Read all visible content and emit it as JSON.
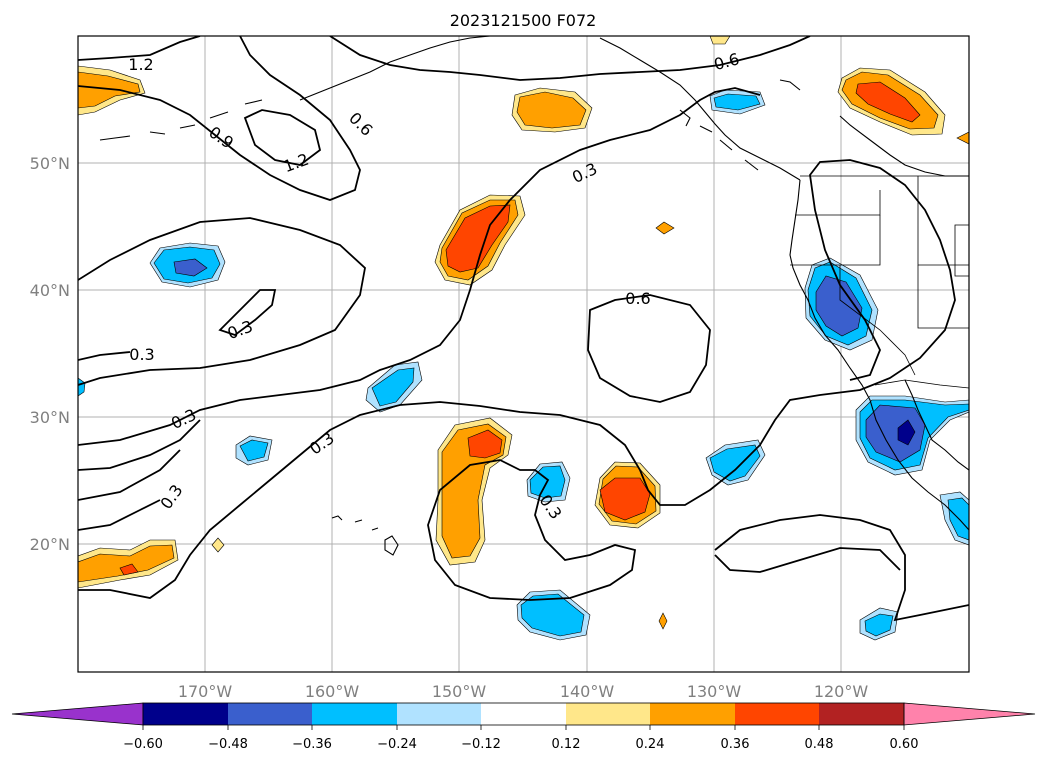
{
  "title": "2023121500 F072",
  "map": {
    "lat_labels": [
      "50°N",
      "40°N",
      "30°N",
      "20°N"
    ],
    "lon_labels": [
      "170°W",
      "160°W",
      "150°W",
      "140°W",
      "130°W",
      "120°W"
    ],
    "contour_labels": [
      "1.2",
      "0.9",
      "1.2",
      "0.6",
      "0.6",
      "0.3",
      "0.6",
      "0.3",
      "0.3",
      "0.3",
      "0.3",
      "0.3",
      "0.3"
    ],
    "colors": {
      "land_outline": "#000000",
      "grid": "#b0b0b0",
      "pos_012_024": "#ffe78a",
      "pos_024_036": "#ffa000",
      "pos_036_048": "#ff4500",
      "neg_012_024": "#b0e2ff",
      "neg_024_036": "#00bfff",
      "neg_036_048": "#3a5fcd",
      "neg_048_060": "#00008b"
    }
  },
  "colorbar": {
    "ticks": [
      "−0.60",
      "−0.48",
      "−0.36",
      "−0.24",
      "−0.12",
      "0.12",
      "0.24",
      "0.36",
      "0.48",
      "0.60"
    ],
    "colors": [
      "#9932cc",
      "#00008b",
      "#3a5fcd",
      "#00bfff",
      "#b0e2ff",
      "#ffffff",
      "#ffe78a",
      "#ffa000",
      "#ff4500",
      "#b22222",
      "#ff82ab"
    ]
  }
}
